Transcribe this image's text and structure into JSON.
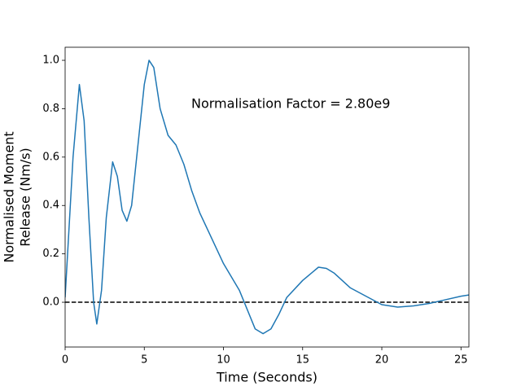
{
  "chart_data": {
    "type": "line",
    "xlabel": "Time (Seconds)",
    "ylabel": [
      "Normalised Moment",
      "Release (Nm/s)"
    ],
    "annotation": "Normalisation Factor = 2.80e9",
    "x": [
      0,
      0.5,
      0.9,
      1.2,
      1.5,
      1.8,
      2.0,
      2.3,
      2.6,
      3.0,
      3.3,
      3.6,
      3.9,
      4.2,
      4.6,
      5.0,
      5.3,
      5.6,
      6.0,
      6.5,
      7.0,
      7.5,
      8.0,
      8.5,
      9,
      10,
      11,
      11.5,
      12,
      12.5,
      13,
      13.5,
      14,
      15,
      16,
      16.5,
      17,
      18,
      19,
      20,
      21,
      22,
      23,
      24,
      25,
      25.5
    ],
    "series": [
      {
        "color": "#1f77b4",
        "values": [
          0.02,
          0.6,
          0.9,
          0.75,
          0.35,
          0.0,
          -0.09,
          0.05,
          0.35,
          0.58,
          0.52,
          0.38,
          0.335,
          0.4,
          0.65,
          0.9,
          1.0,
          0.97,
          0.8,
          0.69,
          0.65,
          0.57,
          0.46,
          0.37,
          0.3,
          0.16,
          0.05,
          -0.03,
          -0.11,
          -0.13,
          -0.11,
          -0.05,
          0.02,
          0.09,
          0.145,
          0.14,
          0.12,
          0.06,
          0.025,
          -0.01,
          -0.02,
          -0.015,
          -0.005,
          0.01,
          0.025,
          0.03
        ]
      }
    ],
    "reference_line": {
      "value": 0,
      "color": "#000000"
    },
    "xlim": [
      0,
      25.5
    ],
    "ylim": [
      -0.185,
      1.054
    ],
    "xticks": [
      0,
      5,
      10,
      15,
      20,
      25
    ],
    "yticks": [
      {
        "value": 0,
        "label": "0.0"
      },
      0.2,
      0.4,
      0.6,
      0.8,
      {
        "value": 1,
        "label": "1.0"
      }
    ]
  }
}
